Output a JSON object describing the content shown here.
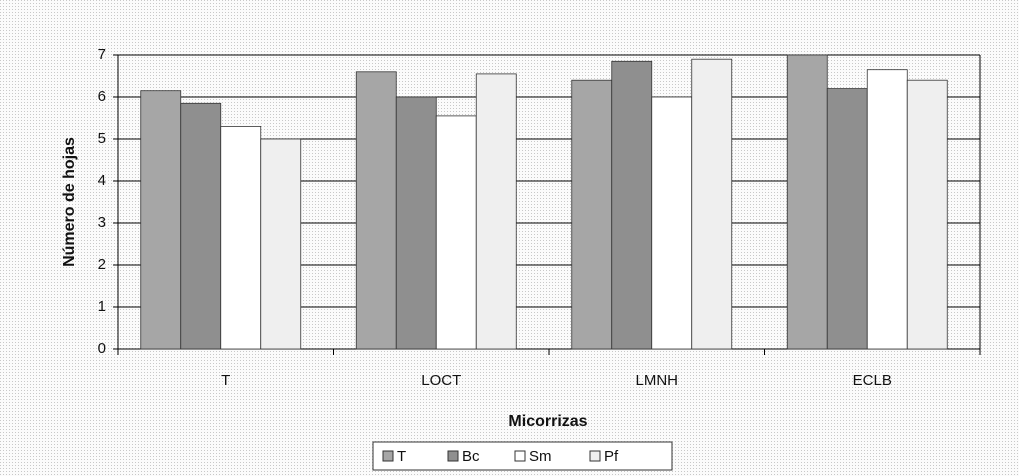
{
  "chart_data": {
    "type": "bar",
    "x_label": "Micorrizas",
    "y_label": "Número de hojas",
    "categories": [
      "T",
      "LOCT",
      "LMNH",
      "ECLB"
    ],
    "series": [
      {
        "name": "T",
        "color": "#a6a6a6",
        "values": [
          6.15,
          6.6,
          6.4,
          7.0
        ]
      },
      {
        "name": "Bc",
        "color": "#8f8f8f",
        "values": [
          5.85,
          6.0,
          6.85,
          6.2
        ]
      },
      {
        "name": "Sm",
        "color": "#ffffff",
        "values": [
          5.3,
          5.55,
          6.0,
          6.65
        ]
      },
      {
        "name": "Pf",
        "color": "#efefef",
        "values": [
          5.0,
          6.55,
          6.9,
          6.4
        ]
      }
    ],
    "ylim": [
      0,
      7
    ],
    "yticks": [
      0,
      1,
      2,
      3,
      4,
      5,
      6,
      7
    ],
    "grid": true,
    "legend": "bottom"
  }
}
